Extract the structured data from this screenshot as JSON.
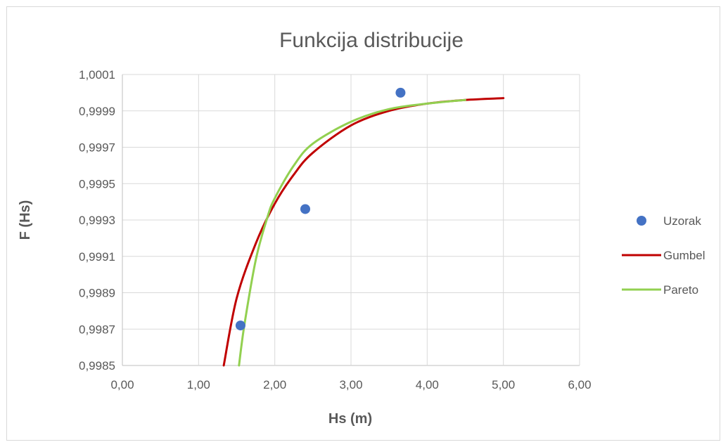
{
  "chart_data": {
    "type": "line",
    "title": "Funkcija distribucije",
    "xlabel": "Hs (m)",
    "ylabel": "F (Hs)",
    "xlim": [
      0,
      6
    ],
    "ylim": [
      0.9985,
      1.0001
    ],
    "x_ticks": [
      "0,00",
      "1,00",
      "2,00",
      "3,00",
      "4,00",
      "5,00",
      "6,00"
    ],
    "y_ticks": [
      "1,0001",
      "0,9999",
      "0,9997",
      "0,9995",
      "0,9993",
      "0,9991",
      "0,9989",
      "0,9987",
      "0,9985"
    ],
    "grid": true,
    "legend_position": "right",
    "series": [
      {
        "name": "Uzorak",
        "kind": "scatter",
        "color": "#4472C4",
        "x": [
          1.55,
          2.4,
          3.65
        ],
        "y": [
          0.99872,
          0.99936,
          1.0
        ]
      },
      {
        "name": "Gumbel",
        "kind": "line",
        "color": "#C00000",
        "x": [
          1.33,
          1.5,
          1.75,
          2.0,
          2.25,
          2.5,
          3.0,
          3.5,
          4.0,
          4.5,
          5.0
        ],
        "y": [
          0.9985,
          0.99887,
          0.99917,
          0.99939,
          0.99955,
          0.99967,
          0.99982,
          0.9999,
          0.99994,
          0.99996,
          0.99997
        ]
      },
      {
        "name": "Pareto",
        "kind": "line",
        "color": "#92D050",
        "x": [
          1.53,
          1.6,
          1.75,
          1.9,
          2.0,
          2.25,
          2.5,
          3.0,
          3.5,
          4.0,
          4.5
        ],
        "y": [
          0.9985,
          0.99872,
          0.99908,
          0.99931,
          0.99942,
          0.9996,
          0.99972,
          0.99984,
          0.99991,
          0.99994,
          0.99996
        ]
      }
    ]
  }
}
